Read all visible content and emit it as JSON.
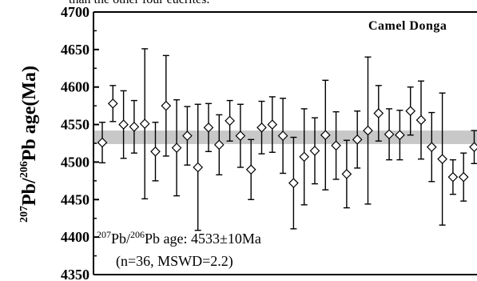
{
  "header_text": "than the other four eucrites.",
  "chart_data": {
    "type": "scatter",
    "title": "Camel Donga",
    "ylabel": {
      "sup1": "207",
      "mid1": "Pb/",
      "sup2": "206",
      "mid2": "Pb age(Ma)"
    },
    "ylim": [
      4350,
      4700
    ],
    "yticks": [
      "4350",
      "4400",
      "4450",
      "4500",
      "4550",
      "4600",
      "4650",
      "4700"
    ],
    "mean_age": 4533,
    "mean_band": [
      4524,
      4542
    ],
    "annotation": {
      "line1_sup1": "207",
      "line1_mid": "Pb/",
      "line1_sup2": "206",
      "line1_rest": "Pb age: 4533±10Ma",
      "line2": "(n=36, MSWD=2.2)"
    },
    "grid": false,
    "points": [
      {
        "n": 1,
        "age": 4526,
        "err": 27
      },
      {
        "n": 2,
        "age": 4578,
        "err": 24
      },
      {
        "n": 3,
        "age": 4550,
        "err": 45
      },
      {
        "n": 4,
        "age": 4547,
        "err": 35
      },
      {
        "n": 5,
        "age": 4551,
        "err": 100
      },
      {
        "n": 6,
        "age": 4514,
        "err": 39
      },
      {
        "n": 7,
        "age": 4575,
        "err": 67
      },
      {
        "n": 8,
        "age": 4519,
        "err": 64
      },
      {
        "n": 9,
        "age": 4535,
        "err": 39
      },
      {
        "n": 10,
        "age": 4493,
        "err": 84
      },
      {
        "n": 11,
        "age": 4546,
        "err": 32
      },
      {
        "n": 12,
        "age": 4523,
        "err": 40
      },
      {
        "n": 13,
        "age": 4555,
        "err": 27
      },
      {
        "n": 14,
        "age": 4535,
        "err": 42
      },
      {
        "n": 15,
        "age": 4490,
        "err": 40
      },
      {
        "n": 16,
        "age": 4546,
        "err": 35
      },
      {
        "n": 17,
        "age": 4550,
        "err": 37
      },
      {
        "n": 18,
        "age": 4535,
        "err": 50
      },
      {
        "n": 19,
        "age": 4472,
        "err": 61
      },
      {
        "n": 20,
        "age": 4507,
        "err": 64
      },
      {
        "n": 21,
        "age": 4515,
        "err": 44
      },
      {
        "n": 22,
        "age": 4536,
        "err": 73
      },
      {
        "n": 23,
        "age": 4522,
        "err": 45
      },
      {
        "n": 24,
        "age": 4484,
        "err": 45
      },
      {
        "n": 25,
        "age": 4530,
        "err": 38
      },
      {
        "n": 26,
        "age": 4542,
        "err": 98
      },
      {
        "n": 27,
        "age": 4565,
        "err": 37
      },
      {
        "n": 28,
        "age": 4537,
        "err": 34
      },
      {
        "n": 29,
        "age": 4536,
        "err": 33
      },
      {
        "n": 30,
        "age": 4568,
        "err": 32
      },
      {
        "n": 31,
        "age": 4556,
        "err": 52
      },
      {
        "n": 32,
        "age": 4520,
        "err": 46
      },
      {
        "n": 33,
        "age": 4504,
        "err": 88
      },
      {
        "n": 34,
        "age": 4480,
        "err": 23
      },
      {
        "n": 35,
        "age": 4480,
        "err": 32
      },
      {
        "n": 36,
        "age": 4520,
        "err": 22
      }
    ]
  }
}
